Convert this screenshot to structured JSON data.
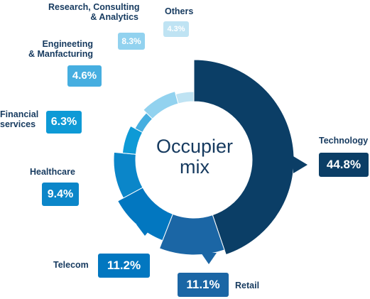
{
  "chart_data": {
    "type": "pie",
    "center_text": "Occupier\nmix",
    "slices": [
      {
        "label": "Technology",
        "value": 44.8,
        "value_label": "44.8%",
        "color": "#0b3e66"
      },
      {
        "label": "Retail",
        "value": 11.1,
        "value_label": "11.1%",
        "color": "#1b66a5"
      },
      {
        "label": "Telecom",
        "value": 11.2,
        "value_label": "11.2%",
        "color": "#0277c0"
      },
      {
        "label": "Healthcare",
        "value": 9.4,
        "value_label": "9.4%",
        "color": "#0b86c9"
      },
      {
        "label": "Financial\nservices",
        "value": 6.3,
        "value_label": "6.3%",
        "color": "#0e9ad6"
      },
      {
        "label": "Engineeting\n& Manfacturing",
        "value": 4.6,
        "value_label": "4.6%",
        "color": "#46aee0"
      },
      {
        "label": "Research, Consulting\n& Analytics",
        "value": 8.3,
        "value_label": "8.3%",
        "color": "#92d2ef"
      },
      {
        "label": "Others",
        "value": 4.3,
        "value_label": "4.3%",
        "color": "#bfe3f3"
      }
    ]
  }
}
